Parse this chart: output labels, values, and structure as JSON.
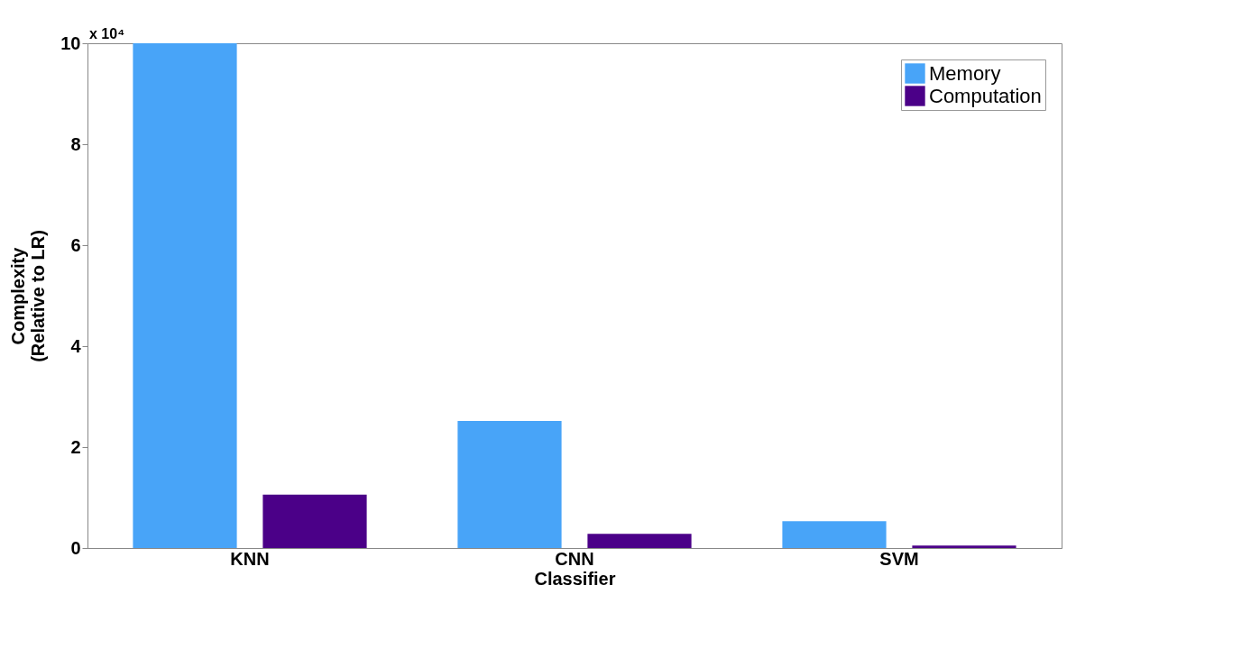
{
  "chart_data": {
    "type": "bar",
    "xlabel": "Classifier",
    "ylabel": "Complexity\n(Relative to LR)",
    "categories": [
      "KNN",
      "CNN",
      "SVM"
    ],
    "series": [
      {
        "name": "Memory",
        "color": "#48a4f8",
        "values": [
          10,
          2.52,
          0.53
        ]
      },
      {
        "name": "Computation",
        "color": "#4b0088",
        "values": [
          1.06,
          0.28,
          0.05
        ]
      }
    ],
    "ylim": [
      0,
      10
    ],
    "yticks": [
      0,
      2,
      4,
      6,
      8,
      10
    ],
    "annotations": [
      "x 10⁴"
    ],
    "legend": "top right",
    "grid": false
  }
}
